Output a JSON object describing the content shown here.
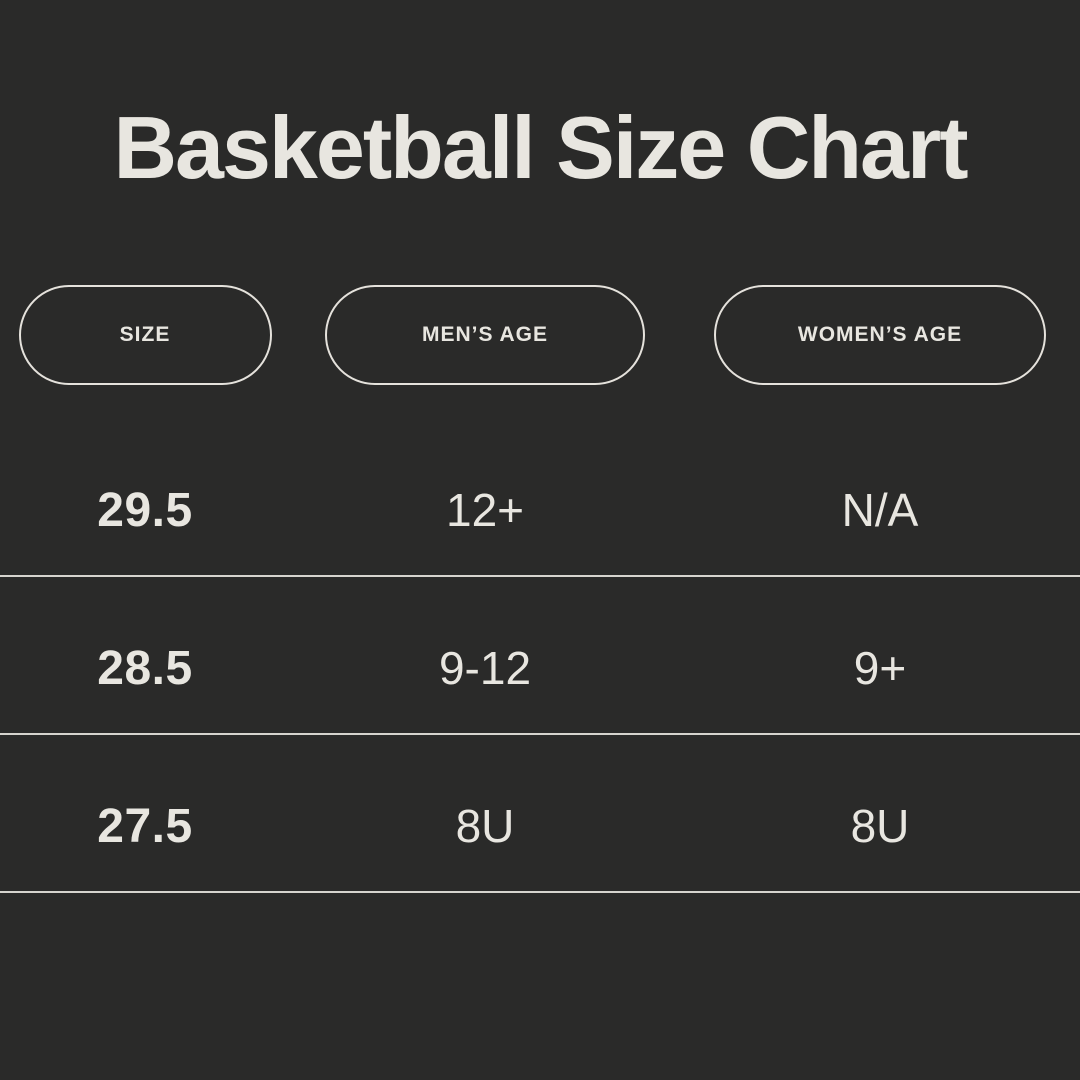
{
  "page": {
    "title": "Basketball Size Chart",
    "background_color": "#2a2a29",
    "text_color": "#e8e6e0",
    "divider_color": "#d6d4ce"
  },
  "chart_data": {
    "type": "table",
    "title": "Basketball Size Chart",
    "columns": [
      "SIZE",
      "MEN’S AGE",
      "WOMEN’S AGE"
    ],
    "rows": [
      {
        "size": "29.5",
        "mens_age": "12+",
        "womens_age": "N/A"
      },
      {
        "size": "28.5",
        "mens_age": "9-12",
        "womens_age": "9+"
      },
      {
        "size": "27.5",
        "mens_age": "8U",
        "womens_age": "8U"
      }
    ],
    "layout": {
      "header_style": "outlined-pill",
      "row_dividers": true,
      "alignment": "center"
    }
  }
}
